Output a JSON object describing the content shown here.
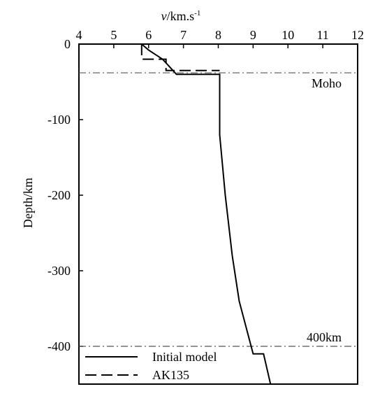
{
  "chart_data": {
    "type": "line",
    "xlabel": {
      "italic": "v",
      "rest": "/km.s",
      "sup": "-1"
    },
    "ylabel": "Depth/km",
    "xlim": [
      4,
      12
    ],
    "ylim": [
      -450,
      0
    ],
    "x_ticks": [
      4,
      5,
      6,
      7,
      8,
      9,
      10,
      11,
      12
    ],
    "y_ticks": [
      0,
      -100,
      -200,
      -300,
      -400
    ],
    "x_axis_position": "top",
    "grid": false,
    "legend_position": "bottom-left",
    "series": [
      {
        "name": "Initial model",
        "style": "solid",
        "points": [
          [
            5.8,
            0
          ],
          [
            6.0,
            -8
          ],
          [
            6.4,
            -20
          ],
          [
            6.7,
            -35
          ],
          [
            6.8,
            -40
          ],
          [
            8.04,
            -40
          ],
          [
            8.04,
            -120
          ],
          [
            8.2,
            -200
          ],
          [
            8.4,
            -280
          ],
          [
            8.6,
            -340
          ],
          [
            9.0,
            -410
          ],
          [
            9.3,
            -410
          ],
          [
            9.5,
            -450
          ]
        ]
      },
      {
        "name": "AK135",
        "style": "dashed",
        "points": [
          [
            5.8,
            0
          ],
          [
            5.8,
            -20
          ],
          [
            6.5,
            -20
          ],
          [
            6.5,
            -35
          ],
          [
            7.2,
            -35
          ],
          [
            8.04,
            -35
          ]
        ]
      }
    ],
    "reference_lines": [
      {
        "label": "Moho",
        "depth": -38
      },
      {
        "label": "400km",
        "depth": -400
      }
    ]
  }
}
